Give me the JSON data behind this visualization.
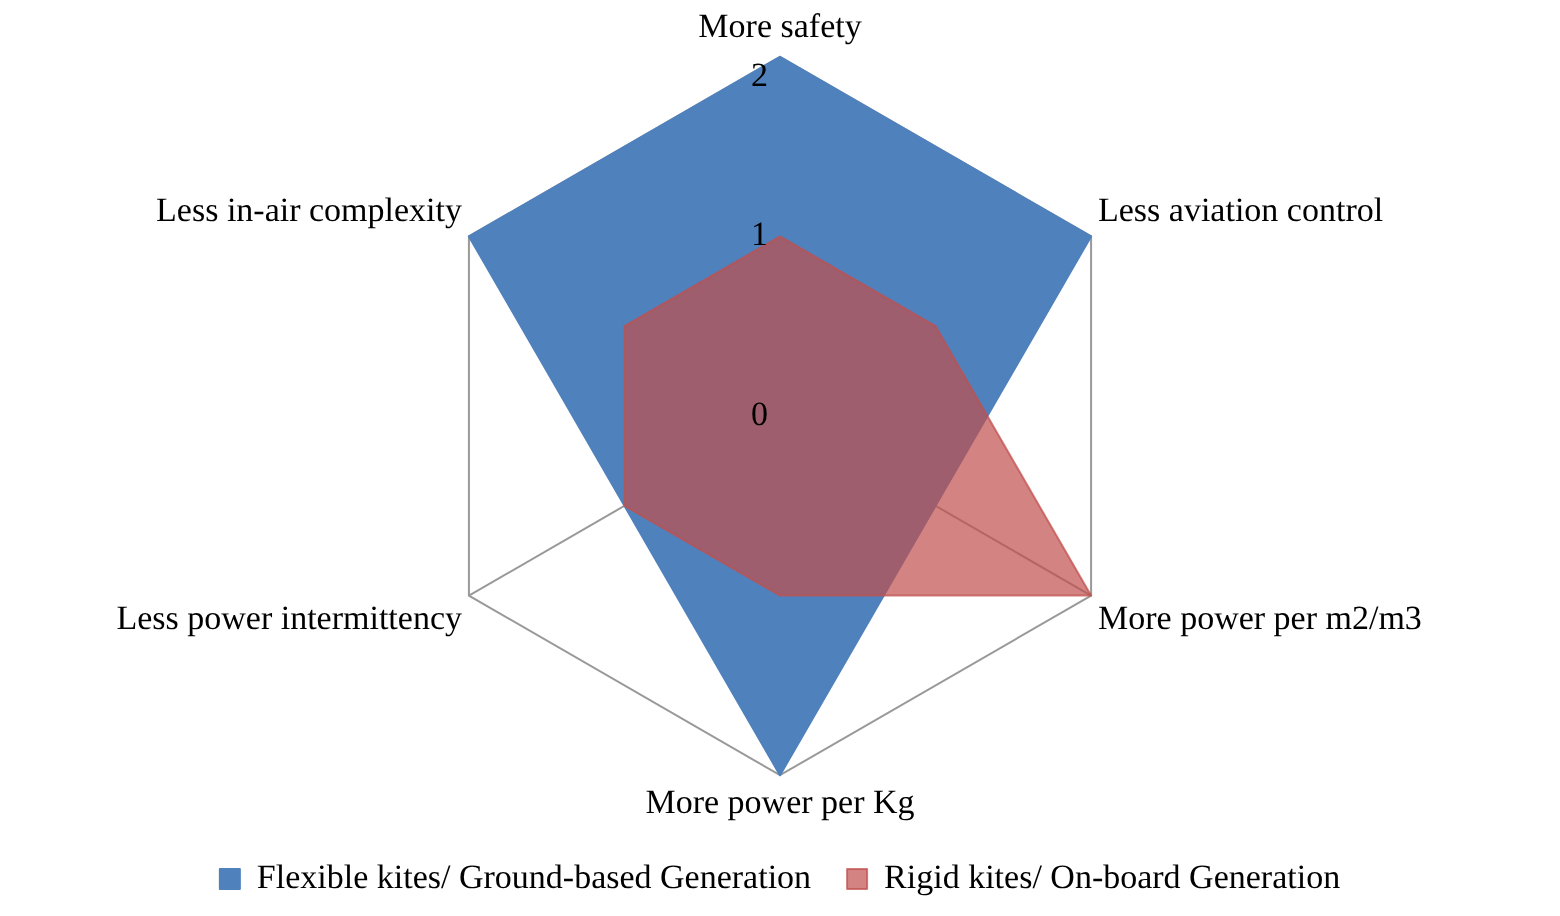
{
  "chart_data": {
    "type": "radar",
    "categories": [
      "More safety",
      "Less aviation control",
      "More power per m2/m3",
      "More power per Kg",
      "Less power intermittency",
      "Less in-air complexity"
    ],
    "series": [
      {
        "name": "Flexible kites/ Ground-based Generation",
        "color": "#4f81bd",
        "values": [
          2,
          2,
          1,
          2,
          1,
          2
        ]
      },
      {
        "name": "Rigid kites/ On-board Generation",
        "color": "#c0504d",
        "values": [
          1,
          1,
          2,
          1,
          1,
          1
        ]
      }
    ],
    "ylim": [
      0,
      2
    ],
    "yticks": [
      0,
      1,
      2
    ],
    "grid": true,
    "legend": "bottom",
    "marker": "none"
  }
}
